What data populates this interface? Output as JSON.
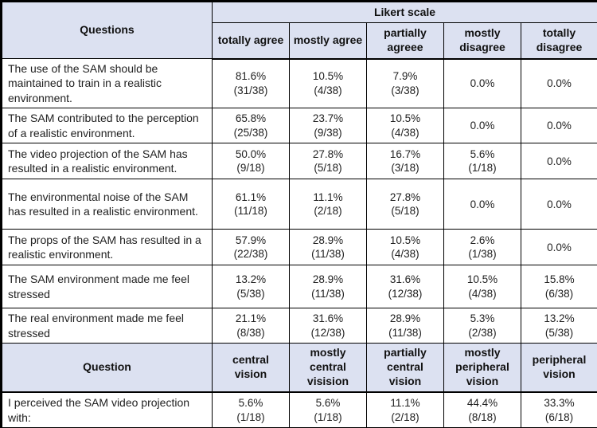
{
  "colors": {
    "header_bg": "#dce1f1",
    "gray_divider": "#808080",
    "border": "#000000"
  },
  "header": {
    "questions_label": "Questions",
    "likert_label": "Likert scale",
    "likert_cols": [
      "totally agree",
      "mostly agree",
      "partially agreee",
      "mostly disagree",
      "totally disagree"
    ]
  },
  "likert_rows": [
    {
      "question": "The use of the SAM should be maintained to train in a realistic environment.",
      "cells": [
        {
          "pct": "81.6%",
          "frac": "(31/38)"
        },
        {
          "pct": "10.5%",
          "frac": "(4/38)"
        },
        {
          "pct": "7.9%",
          "frac": "(3/38)"
        },
        {
          "pct": "0.0%",
          "frac": ""
        },
        {
          "pct": "0.0%",
          "frac": ""
        }
      ]
    },
    {
      "question": "The SAM contributed to the perception of a realistic environment.",
      "cells": [
        {
          "pct": "65.8%",
          "frac": "(25/38)"
        },
        {
          "pct": "23.7%",
          "frac": "(9/38)"
        },
        {
          "pct": "10.5%",
          "frac": "(4/38)"
        },
        {
          "pct": "0.0%",
          "frac": ""
        },
        {
          "pct": "0.0%",
          "frac": ""
        }
      ]
    },
    {
      "question": "The video projection of the SAM has resulted in a realistic environment.",
      "cells": [
        {
          "pct": "50.0%",
          "frac": "(9/18)"
        },
        {
          "pct": "27.8%",
          "frac": "(5/18)"
        },
        {
          "pct": "16.7%",
          "frac": "(3/18)"
        },
        {
          "pct": "5.6%",
          "frac": "(1/18)"
        },
        {
          "pct": "0.0%",
          "frac": ""
        }
      ]
    },
    {
      "question": "The environmental noise of the SAM has resulted in a realistic environment.",
      "cells": [
        {
          "pct": "61.1%",
          "frac": "(11/18)"
        },
        {
          "pct": "11.1%",
          "frac": "(2/18)"
        },
        {
          "pct": "27.8%",
          "frac": "(5/18)"
        },
        {
          "pct": "0.0%",
          "frac": ""
        },
        {
          "pct": "0.0%",
          "frac": ""
        }
      ]
    },
    {
      "question": "The props of the SAM has resulted in a realistic environment.",
      "cells": [
        {
          "pct": "57.9%",
          "frac": "(22/38)"
        },
        {
          "pct": "28.9%",
          "frac": "(11/38)"
        },
        {
          "pct": "10.5%",
          "frac": "(4/38)"
        },
        {
          "pct": "2.6%",
          "frac": "(1/38)"
        },
        {
          "pct": "0.0%",
          "frac": ""
        }
      ]
    },
    {
      "question": "The SAM environment made me feel stressed",
      "cells": [
        {
          "pct": "13.2%",
          "frac": "(5/38)"
        },
        {
          "pct": "28.9%",
          "frac": "(11/38)"
        },
        {
          "pct": "31.6%",
          "frac": "(12/38)"
        },
        {
          "pct": "10.5%",
          "frac": "(4/38)"
        },
        {
          "pct": "15.8%",
          "frac": "(6/38)"
        }
      ]
    },
    {
      "question": "The real environment made me feel stressed",
      "cells": [
        {
          "pct": "21.1%",
          "frac": "(8/38)"
        },
        {
          "pct": "31.6%",
          "frac": "(12/38)"
        },
        {
          "pct": "28.9%",
          "frac": "(11/38)"
        },
        {
          "pct": "5.3%",
          "frac": "(2/38)"
        },
        {
          "pct": "13.2%",
          "frac": "(5/38)"
        }
      ]
    }
  ],
  "vision_header": {
    "label": "Question",
    "cols": [
      "central vision",
      "mostly central visision",
      "partially central vision",
      "mostly peripheral vision",
      "peripheral vision"
    ]
  },
  "vision_rows": [
    {
      "question": "I perceived the SAM video projection with:",
      "cells": [
        {
          "pct": "5.6%",
          "frac": "(1/18)"
        },
        {
          "pct": "5.6%",
          "frac": "(1/18)"
        },
        {
          "pct": "11.1%",
          "frac": "(2/18)"
        },
        {
          "pct": "44.4%",
          "frac": "(8/18)"
        },
        {
          "pct": "33.3%",
          "frac": "(6/18)"
        }
      ]
    }
  ]
}
